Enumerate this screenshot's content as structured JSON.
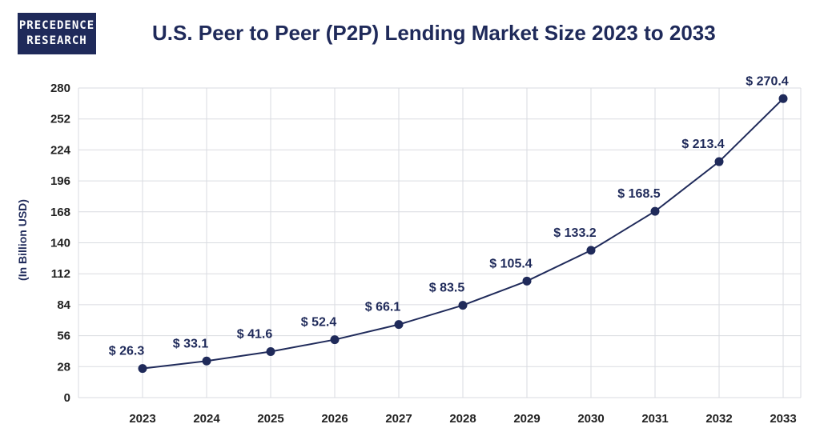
{
  "logo": {
    "line1": "PRECEDENCE",
    "line2": "RESEARCH"
  },
  "colors": {
    "brand": "#1f2a5a",
    "line": "#1f2a5a",
    "grid": "#d9dbe0"
  },
  "chart_data": {
    "type": "line",
    "title": "U.S. Peer to Peer (P2P) Lending Market Size 2023 to 2033",
    "xlabel": "",
    "ylabel": "(In Billion USD)",
    "categories": [
      "2023",
      "2024",
      "2025",
      "2026",
      "2027",
      "2028",
      "2029",
      "2030",
      "2031",
      "2032",
      "2033"
    ],
    "values": [
      26.3,
      33.1,
      41.6,
      52.4,
      66.1,
      83.5,
      105.4,
      133.2,
      168.5,
      213.4,
      270.4
    ],
    "labels": [
      "$ 26.3",
      "$ 33.1",
      "$ 41.6",
      "$ 52.4",
      "$ 66.1",
      "$ 83.5",
      "$ 105.4",
      "$ 133.2",
      "$ 168.5",
      "$ 213.4",
      "$ 270.4"
    ],
    "yticks": [
      0,
      28,
      56,
      84,
      112,
      140,
      168,
      196,
      224,
      252,
      280
    ],
    "ylim": [
      0,
      280
    ],
    "grid": true
  }
}
